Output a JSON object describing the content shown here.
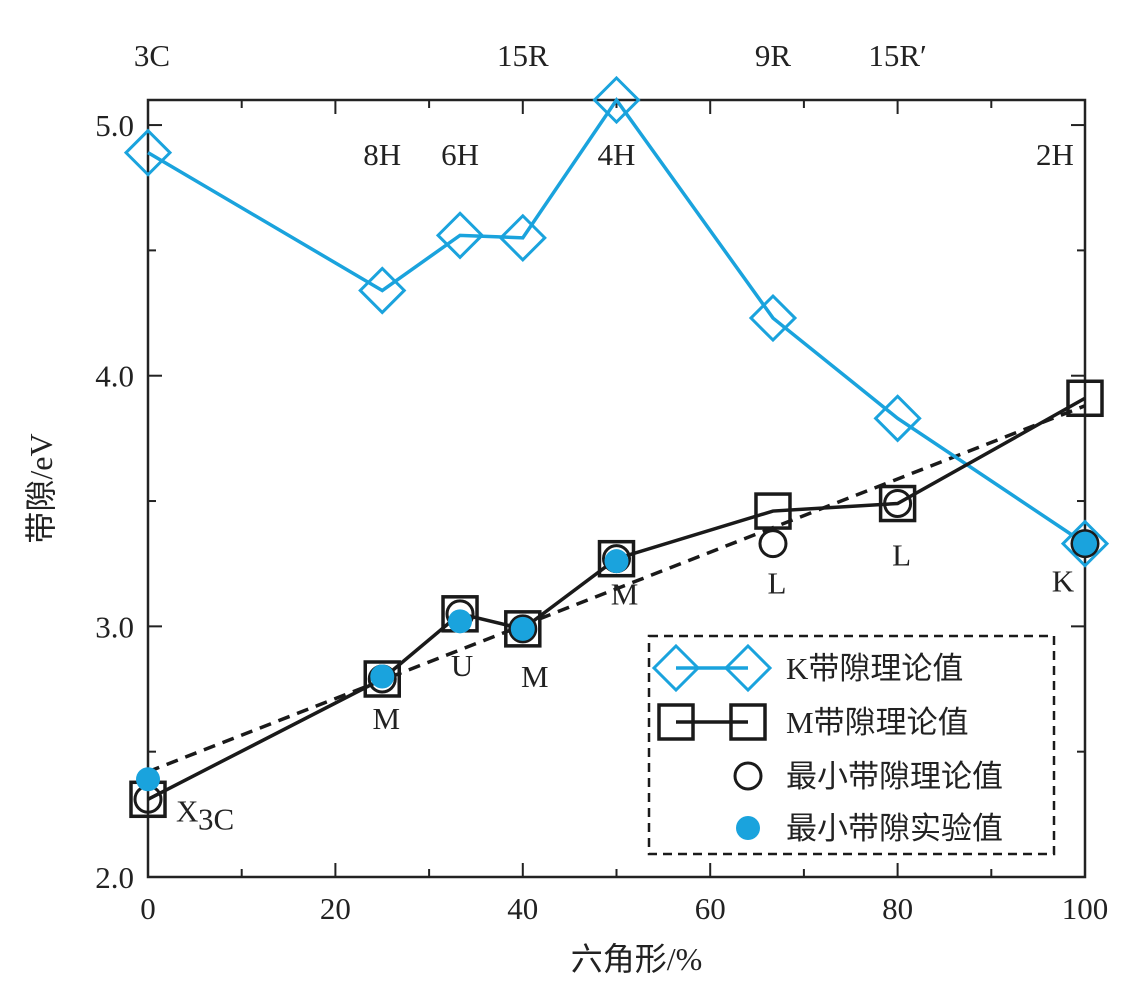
{
  "chart_data": {
    "type": "line",
    "xlabel": "六角形/%",
    "ylabel": "带隙/eV",
    "xlim": [
      0,
      100
    ],
    "ylim": [
      2.0,
      5.1
    ],
    "x_ticks": [
      0,
      20,
      40,
      60,
      80,
      100
    ],
    "x_tick_labels": [
      "0",
      "20",
      "40",
      "60",
      "80",
      "100"
    ],
    "y_ticks": [
      2.0,
      3.0,
      4.0,
      5.0
    ],
    "y_tick_labels": [
      "2.0",
      "3.0",
      "4.0",
      "5.0"
    ],
    "polytypes_top": [
      {
        "label": "3C",
        "x": 0
      },
      {
        "label": "15R",
        "x": 40
      },
      {
        "label": "9R",
        "x": 66.7
      },
      {
        "label": "15R′",
        "x": 80
      }
    ],
    "polytypes_inner": [
      {
        "label": "8H",
        "x": 25
      },
      {
        "label": "6H",
        "x": 33.3
      },
      {
        "label": "4H",
        "x": 50
      },
      {
        "label": "2H",
        "x": 100
      }
    ],
    "series": [
      {
        "name": "K带隙理论值",
        "color": "#1aa3dd",
        "marker": "diamond",
        "x": [
          0,
          25,
          33.3,
          40,
          50,
          66.7,
          80,
          100
        ],
        "y": [
          4.89,
          4.34,
          4.56,
          4.55,
          5.1,
          4.23,
          3.83,
          3.33
        ]
      },
      {
        "name": "M带隙理论值",
        "color": "#1a1a1a",
        "marker": "square",
        "x": [
          0,
          25,
          33.3,
          40,
          50,
          66.7,
          80,
          100
        ],
        "y": [
          2.31,
          2.79,
          3.05,
          2.99,
          3.27,
          3.46,
          3.49,
          3.91
        ]
      },
      {
        "name": "最小带隙理论值",
        "color": "#1a1a1a",
        "marker": "open-circle",
        "x": [
          0,
          25,
          33.3,
          40,
          50,
          66.7,
          80,
          100
        ],
        "y": [
          2.31,
          2.79,
          3.05,
          2.99,
          3.27,
          3.33,
          3.49,
          3.33
        ]
      },
      {
        "name": "最小带隙实验值",
        "color": "#1aa3dd",
        "marker": "filled-circle",
        "x": [
          0,
          25,
          33.3,
          40,
          50,
          100
        ],
        "y": [
          2.39,
          2.8,
          3.02,
          2.99,
          3.26,
          3.33
        ]
      }
    ],
    "trend_line": {
      "style": "dashed",
      "x": [
        0,
        100
      ],
      "y": [
        2.42,
        3.88
      ]
    },
    "point_labels": [
      {
        "text": "X",
        "sub": "3C",
        "x": 0,
        "y": 2.31
      },
      {
        "text": "M",
        "x": 25,
        "y": 2.79
      },
      {
        "text": "U",
        "x": 33.3,
        "y": 3.05
      },
      {
        "text": "M",
        "x": 40,
        "y": 2.99
      },
      {
        "text": "M",
        "x": 50,
        "y": 3.27
      },
      {
        "text": "L",
        "x": 66.7,
        "y": 3.33
      },
      {
        "text": "L",
        "x": 80,
        "y": 3.49
      },
      {
        "text": "K",
        "x": 100,
        "y": 3.33
      }
    ],
    "legend": {
      "position": "bottom-right",
      "entries": [
        "K带隙理论值",
        "M带隙理论值",
        "最小带隙理论值",
        "最小带隙实验值"
      ]
    }
  }
}
